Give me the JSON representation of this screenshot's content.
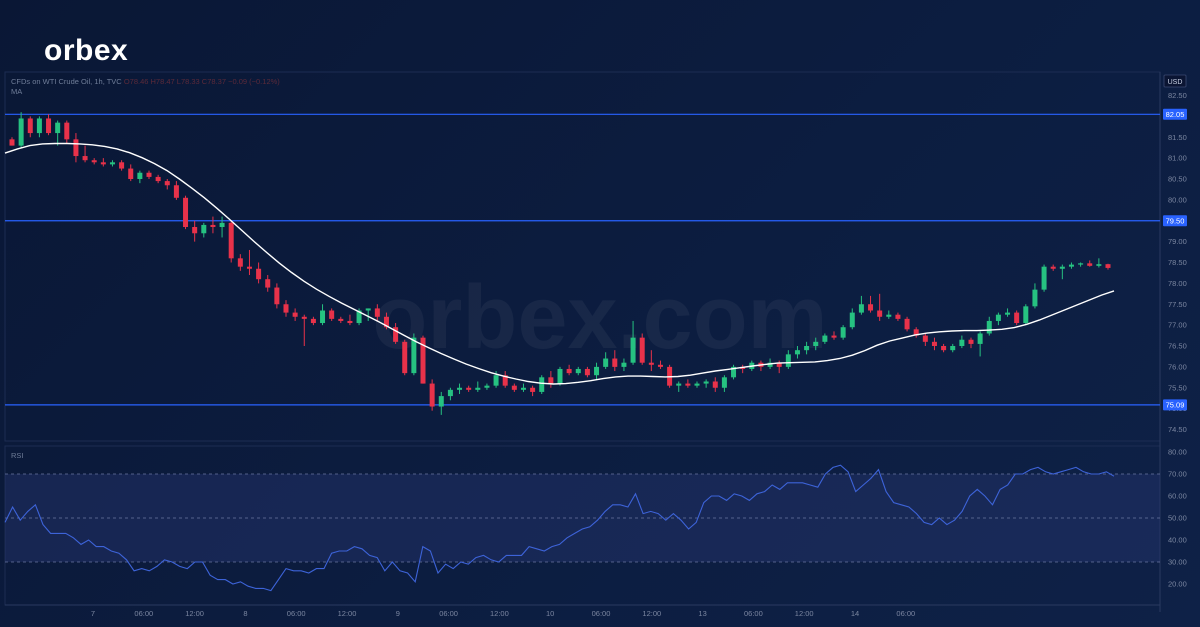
{
  "brand": {
    "logo_text": "orbex",
    "watermark": "orbex.com"
  },
  "header": {
    "symbol_line": "CFDs on WTI Crude Oil, 1h, TVC",
    "ohlc_line": "O78.46 H78.47 L78.33 C78.37 −0.09 (−0.12%)",
    "ma_label": "MA",
    "rsi_label": "RSI"
  },
  "colors": {
    "up": "#26c281",
    "down": "#e8324a",
    "line": "#2962ff",
    "ma": "#ffffff",
    "rsi": "#3d63d8",
    "axis_text": "#7b86a0"
  },
  "chart_data": [
    {
      "type": "candlestick",
      "currency_label": "USD",
      "ylim": [
        74.25,
        82.75
      ],
      "y_ticks": [
        "82.50",
        "82.00",
        "81.50",
        "81.00",
        "80.50",
        "80.00",
        "79.50",
        "79.00",
        "78.50",
        "78.00",
        "77.50",
        "77.00",
        "76.50",
        "76.00",
        "75.50",
        "75.00",
        "74.50"
      ],
      "x_ticks": [
        "7",
        "06:00",
        "12:00",
        "8",
        "06:00",
        "12:00",
        "9",
        "06:00",
        "12:00",
        "10",
        "06:00",
        "12:00",
        "13",
        "06:00",
        "12:00",
        "14",
        "06:00"
      ],
      "horizontal_levels": [
        {
          "value": 82.05,
          "label": "82.05"
        },
        {
          "value": 79.5,
          "label": "79.50"
        },
        {
          "value": 75.09,
          "label": "75.09"
        }
      ],
      "candles": [
        [
          81.45,
          81.5,
          81.3,
          81.3
        ],
        [
          81.3,
          82.1,
          81.25,
          81.95
        ],
        [
          81.95,
          82.0,
          81.5,
          81.6
        ],
        [
          81.6,
          82.0,
          81.5,
          81.95
        ],
        [
          81.95,
          82.05,
          81.55,
          81.6
        ],
        [
          81.6,
          81.9,
          81.3,
          81.85
        ],
        [
          81.85,
          81.9,
          81.35,
          81.45
        ],
        [
          81.45,
          81.6,
          80.9,
          81.05
        ],
        [
          81.05,
          81.3,
          80.9,
          80.95
        ],
        [
          80.95,
          81.0,
          80.85,
          80.9
        ],
        [
          80.9,
          81.0,
          80.8,
          80.85
        ],
        [
          80.85,
          80.95,
          80.8,
          80.9
        ],
        [
          80.9,
          80.95,
          80.7,
          80.75
        ],
        [
          80.75,
          80.85,
          80.45,
          80.5
        ],
        [
          80.5,
          80.7,
          80.4,
          80.65
        ],
        [
          80.65,
          80.7,
          80.5,
          80.55
        ],
        [
          80.55,
          80.6,
          80.4,
          80.45
        ],
        [
          80.45,
          80.5,
          80.25,
          80.35
        ],
        [
          80.35,
          80.45,
          80.0,
          80.05
        ],
        [
          80.05,
          80.1,
          79.3,
          79.35
        ],
        [
          79.35,
          79.5,
          79.0,
          79.2
        ],
        [
          79.2,
          79.45,
          79.1,
          79.4
        ],
        [
          79.4,
          79.6,
          79.2,
          79.35
        ],
        [
          79.35,
          79.6,
          79.1,
          79.45
        ],
        [
          79.45,
          79.5,
          78.5,
          78.6
        ],
        [
          78.6,
          78.7,
          78.3,
          78.4
        ],
        [
          78.4,
          78.8,
          78.2,
          78.35
        ],
        [
          78.35,
          78.5,
          78.0,
          78.1
        ],
        [
          78.1,
          78.2,
          77.8,
          77.9
        ],
        [
          77.9,
          78.0,
          77.4,
          77.5
        ],
        [
          77.5,
          77.6,
          77.2,
          77.3
        ],
        [
          77.3,
          77.4,
          77.1,
          77.2
        ],
        [
          77.2,
          77.25,
          76.5,
          77.15
        ],
        [
          77.15,
          77.2,
          77.0,
          77.05
        ],
        [
          77.05,
          77.5,
          77.0,
          77.35
        ],
        [
          77.35,
          77.4,
          77.1,
          77.15
        ],
        [
          77.15,
          77.2,
          77.05,
          77.1
        ],
        [
          77.1,
          77.25,
          77.0,
          77.05
        ],
        [
          77.05,
          77.4,
          77.0,
          77.35
        ],
        [
          77.35,
          77.4,
          77.1,
          77.4
        ],
        [
          77.4,
          77.5,
          77.1,
          77.2
        ],
        [
          77.2,
          77.3,
          76.9,
          76.95
        ],
        [
          76.95,
          77.05,
          76.55,
          76.6
        ],
        [
          76.6,
          76.65,
          75.8,
          75.85
        ],
        [
          75.85,
          76.8,
          75.8,
          76.7
        ],
        [
          76.7,
          76.75,
          75.6,
          75.6
        ],
        [
          75.6,
          75.7,
          74.95,
          75.05
        ],
        [
          75.05,
          75.4,
          74.85,
          75.3
        ],
        [
          75.3,
          75.5,
          75.2,
          75.45
        ],
        [
          75.45,
          75.6,
          75.35,
          75.5
        ],
        [
          75.5,
          75.55,
          75.4,
          75.45
        ],
        [
          75.45,
          75.65,
          75.4,
          75.5
        ],
        [
          75.5,
          75.6,
          75.45,
          75.55
        ],
        [
          75.55,
          75.9,
          75.5,
          75.8
        ],
        [
          75.8,
          75.9,
          75.5,
          75.55
        ],
        [
          75.55,
          75.6,
          75.4,
          75.45
        ],
        [
          75.45,
          75.6,
          75.4,
          75.5
        ],
        [
          75.5,
          75.55,
          75.3,
          75.4
        ],
        [
          75.4,
          75.8,
          75.35,
          75.75
        ],
        [
          75.75,
          75.9,
          75.5,
          75.6
        ],
        [
          75.6,
          76.0,
          75.55,
          75.95
        ],
        [
          75.95,
          76.05,
          75.8,
          75.85
        ],
        [
          75.85,
          76.0,
          75.8,
          75.95
        ],
        [
          75.95,
          76.0,
          75.75,
          75.8
        ],
        [
          75.8,
          76.1,
          75.7,
          76.0
        ],
        [
          76.0,
          76.35,
          75.95,
          76.2
        ],
        [
          76.2,
          76.4,
          75.9,
          76.0
        ],
        [
          76.0,
          76.2,
          75.9,
          76.1
        ],
        [
          76.1,
          77.1,
          76.05,
          76.7
        ],
        [
          76.7,
          76.8,
          76.05,
          76.1
        ],
        [
          76.1,
          76.4,
          75.9,
          76.05
        ],
        [
          76.05,
          76.15,
          75.95,
          76.0
        ],
        [
          76.0,
          76.05,
          75.5,
          75.55
        ],
        [
          75.55,
          75.65,
          75.4,
          75.6
        ],
        [
          75.6,
          75.7,
          75.5,
          75.55
        ],
        [
          75.55,
          75.65,
          75.5,
          75.6
        ],
        [
          75.6,
          75.7,
          75.5,
          75.65
        ],
        [
          75.65,
          75.75,
          75.4,
          75.5
        ],
        [
          75.5,
          75.8,
          75.4,
          75.75
        ],
        [
          75.75,
          76.05,
          75.7,
          76.0
        ],
        [
          76.0,
          76.05,
          75.85,
          75.95
        ],
        [
          75.95,
          76.15,
          75.9,
          76.1
        ],
        [
          76.1,
          76.15,
          75.9,
          76.0
        ],
        [
          76.0,
          76.2,
          75.95,
          76.1
        ],
        [
          76.1,
          76.15,
          75.85,
          76.0
        ],
        [
          76.0,
          76.4,
          75.95,
          76.3
        ],
        [
          76.3,
          76.5,
          76.2,
          76.4
        ],
        [
          76.4,
          76.6,
          76.3,
          76.5
        ],
        [
          76.5,
          76.7,
          76.4,
          76.6
        ],
        [
          76.6,
          76.8,
          76.55,
          76.75
        ],
        [
          76.75,
          76.85,
          76.65,
          76.7
        ],
        [
          76.7,
          77.0,
          76.65,
          76.95
        ],
        [
          76.95,
          77.4,
          76.9,
          77.3
        ],
        [
          77.3,
          77.7,
          77.25,
          77.5
        ],
        [
          77.5,
          77.7,
          77.3,
          77.35
        ],
        [
          77.35,
          77.75,
          77.1,
          77.2
        ],
        [
          77.2,
          77.35,
          77.15,
          77.25
        ],
        [
          77.25,
          77.3,
          77.1,
          77.15
        ],
        [
          77.15,
          77.2,
          76.85,
          76.9
        ],
        [
          76.9,
          76.95,
          76.7,
          76.75
        ],
        [
          76.75,
          76.8,
          76.5,
          76.6
        ],
        [
          76.6,
          76.7,
          76.4,
          76.5
        ],
        [
          76.5,
          76.55,
          76.35,
          76.4
        ],
        [
          76.4,
          76.55,
          76.35,
          76.5
        ],
        [
          76.5,
          76.75,
          76.45,
          76.65
        ],
        [
          76.65,
          76.7,
          76.45,
          76.55
        ],
        [
          76.55,
          76.85,
          76.25,
          76.8
        ],
        [
          76.8,
          77.2,
          76.75,
          77.1
        ],
        [
          77.1,
          77.3,
          77.0,
          77.25
        ],
        [
          77.25,
          77.4,
          77.2,
          77.3
        ],
        [
          77.3,
          77.35,
          77.0,
          77.05
        ],
        [
          77.05,
          77.5,
          77.0,
          77.45
        ],
        [
          77.45,
          78.0,
          77.4,
          77.85
        ],
        [
          77.85,
          78.45,
          77.8,
          78.4
        ],
        [
          78.4,
          78.45,
          78.3,
          78.35
        ],
        [
          78.35,
          78.45,
          78.1,
          78.4
        ],
        [
          78.4,
          78.5,
          78.35,
          78.45
        ],
        [
          78.45,
          78.5,
          78.4,
          78.48
        ],
        [
          78.48,
          78.55,
          78.4,
          78.42
        ],
        [
          78.42,
          78.6,
          78.38,
          78.46
        ],
        [
          78.46,
          78.47,
          78.33,
          78.37
        ]
      ],
      "moving_average": [
        81.12,
        81.22,
        81.3,
        81.34,
        81.35,
        81.35,
        81.34,
        81.32,
        81.28,
        81.22,
        81.13,
        81.01,
        80.87,
        80.7,
        80.5,
        80.28,
        80.05,
        79.8,
        79.54,
        79.27,
        79.0,
        78.74,
        78.49,
        78.26,
        78.05,
        77.86,
        77.69,
        77.53,
        77.38,
        77.23,
        77.08,
        76.92,
        76.76,
        76.6,
        76.46,
        76.32,
        76.19,
        76.07,
        75.96,
        75.86,
        75.78,
        75.71,
        75.65,
        75.61,
        75.59,
        75.6,
        75.63,
        75.67,
        75.72,
        75.76,
        75.78,
        75.78,
        75.77,
        75.76,
        75.77,
        75.8,
        75.85,
        75.9,
        75.94,
        75.98,
        76.02,
        76.06,
        76.09,
        76.1,
        76.11,
        76.12,
        76.15,
        76.2,
        76.28,
        76.39,
        76.52,
        76.62,
        76.69,
        76.76,
        76.81,
        76.84,
        76.86,
        76.87,
        76.87,
        76.88,
        76.9,
        76.94,
        77.02,
        77.12,
        77.24,
        77.36,
        77.48,
        77.6,
        77.72,
        77.82
      ]
    },
    {
      "type": "line",
      "title": "RSI",
      "ylim": [
        10,
        80
      ],
      "y_ticks": [
        "80.00",
        "70.00",
        "60.00",
        "50.00",
        "40.00",
        "30.00",
        "20.00"
      ],
      "dashed_levels": [
        70,
        50,
        30
      ],
      "values": [
        48,
        55,
        49,
        53,
        56,
        47,
        43,
        43,
        43,
        41,
        38,
        40,
        37,
        37,
        35,
        34,
        31,
        26,
        27,
        26,
        28,
        31,
        30,
        28,
        27,
        30,
        30,
        24,
        22,
        22,
        20,
        21,
        19,
        18,
        18,
        17,
        22,
        27,
        26,
        26,
        25,
        27,
        27,
        34,
        35,
        35,
        37,
        36,
        33,
        32,
        26,
        30,
        26,
        25,
        21,
        37,
        35,
        25,
        29,
        27,
        30,
        29,
        32,
        33,
        31,
        30,
        33,
        33,
        33,
        37,
        36,
        35,
        37,
        38,
        41,
        43,
        45,
        46,
        49,
        53,
        56,
        56,
        55,
        61,
        52,
        53,
        52,
        49,
        52,
        49,
        45,
        48,
        57,
        60,
        60,
        58,
        61,
        60,
        58,
        61,
        62,
        65,
        63,
        66,
        66,
        66,
        65,
        64,
        70,
        73,
        74,
        71,
        62,
        65,
        68,
        72,
        62,
        57,
        56,
        55,
        52,
        48,
        47,
        50,
        47,
        49,
        53,
        60,
        63,
        60,
        56,
        63,
        65,
        70,
        70,
        72,
        73,
        71,
        70,
        71,
        72,
        73,
        71,
        70,
        70,
        71,
        69
      ]
    }
  ]
}
